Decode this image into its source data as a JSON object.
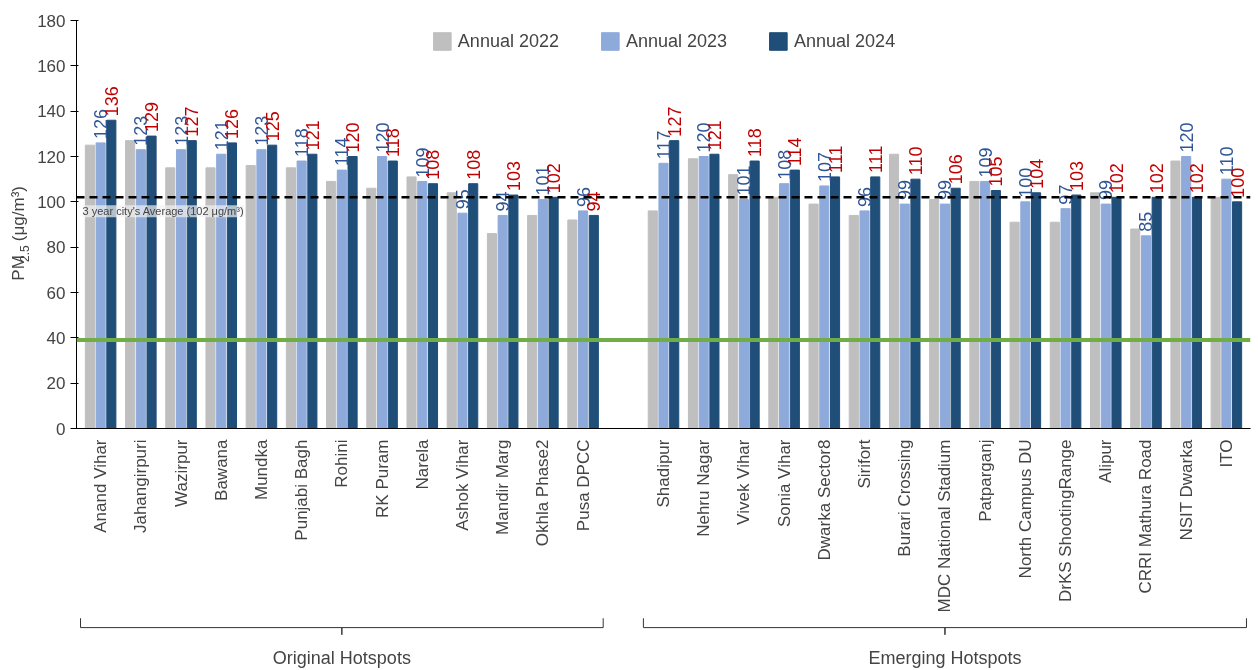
{
  "chart_data": {
    "type": "bar",
    "ylabel": "PM$_{2.5}$ (μg/m³)",
    "categories": [
      "Anand Vihar",
      "Jahangirpuri",
      "Wazirpur",
      "Bawana",
      "Mundka",
      "Punjabi Bagh",
      "Rohini",
      "RK Puram",
      "Narela",
      "Ashok Vihar",
      "Mandir Marg",
      "Okhla Phase2",
      "Pusa DPCC",
      null,
      "Shadipur",
      "Nehru Nagar",
      "Vivek Vihar",
      "Sonia Vihar",
      "Dwarka Sector8",
      "Sirifort",
      "Burari Crossing",
      "MDC National Stadium",
      "Patparganj",
      "North Campus DU",
      "DrKS ShootingRange",
      "Alipur",
      "CRRI Mathura Road",
      "NSIT Dwarka",
      "ITO"
    ],
    "series": [
      {
        "name": "Annual 2022",
        "color": "#bfbfbf",
        "values": [
          125,
          127,
          115,
          115,
          116,
          115,
          109,
          106,
          111,
          104,
          86,
          94,
          92,
          null,
          96,
          119,
          112,
          102,
          99,
          94,
          121,
          101,
          109,
          91,
          91,
          104,
          88,
          118,
          102
        ]
      },
      {
        "name": "Annual 2023",
        "color": "#8eaadb",
        "values": [
          126,
          123,
          123,
          121,
          123,
          118,
          114,
          120,
          109,
          95,
          94,
          101,
          96,
          null,
          117,
          120,
          101,
          108,
          107,
          96,
          99,
          99,
          109,
          100,
          97,
          99,
          85,
          120,
          110
        ],
        "value_labels": [
          "126",
          "123",
          "123",
          "121",
          "123",
          "118",
          "114",
          "120",
          "109",
          "95",
          "94",
          "101",
          "96",
          null,
          "117",
          "120",
          "101",
          "108",
          "107",
          "96",
          "99",
          "99",
          "109",
          "100",
          "97",
          "99",
          "85",
          "120",
          "110"
        ]
      },
      {
        "name": "Annual 2024",
        "color": "#1f4e79",
        "values": [
          136,
          129,
          127,
          126,
          125,
          121,
          120,
          118,
          108,
          108,
          103,
          102,
          94,
          null,
          127,
          121,
          118,
          114,
          111,
          111,
          110,
          106,
          105,
          104,
          103,
          102,
          102,
          102,
          100
        ],
        "value_labels": [
          "136",
          "129",
          "127",
          "126",
          "125",
          "121",
          "120",
          "118",
          "108",
          "108",
          "103",
          "102",
          "94",
          null,
          "127",
          "121",
          "118",
          "114",
          "111",
          "111",
          "110",
          "106",
          "105",
          "104",
          "103",
          "102",
          "102",
          "102",
          "100"
        ]
      }
    ],
    "ylim": [
      0,
      180
    ],
    "yticks": [
      0,
      20,
      40,
      60,
      80,
      100,
      120,
      140,
      160,
      180
    ],
    "ref_lines": [
      {
        "axis": "y",
        "value": 102,
        "label": "3 year city's Average (102 μg/m³)",
        "color": "#000000",
        "line_style": "dashed"
      },
      {
        "axis": "y",
        "value": 39,
        "color": "#70ad47",
        "line_style": "solid"
      }
    ],
    "annotations": [
      "Original Hotspots",
      "Emerging Hotspots"
    ],
    "legend": "top",
    "grid": false
  }
}
